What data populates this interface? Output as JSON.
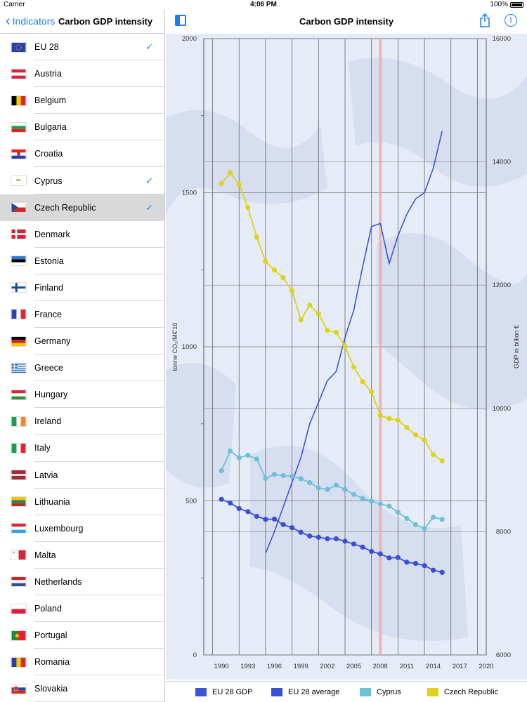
{
  "status": {
    "carrier": "Carrier",
    "time": "4:06 PM",
    "battery": "100%"
  },
  "sidebar": {
    "back_label": "Indicators",
    "title": "Carbon GDP intensity",
    "countries": [
      {
        "name": "EU 28",
        "checked": true,
        "selected": false,
        "flag": "eu"
      },
      {
        "name": "Austria",
        "checked": false,
        "selected": false,
        "flag": "at"
      },
      {
        "name": "Belgium",
        "checked": false,
        "selected": false,
        "flag": "be"
      },
      {
        "name": "Bulgaria",
        "checked": false,
        "selected": false,
        "flag": "bg"
      },
      {
        "name": "Croatia",
        "checked": false,
        "selected": false,
        "flag": "hr"
      },
      {
        "name": "Cyprus",
        "checked": true,
        "selected": false,
        "flag": "cy"
      },
      {
        "name": "Czech Republic",
        "checked": true,
        "selected": true,
        "flag": "cz"
      },
      {
        "name": "Denmark",
        "checked": false,
        "selected": false,
        "flag": "dk"
      },
      {
        "name": "Estonia",
        "checked": false,
        "selected": false,
        "flag": "ee"
      },
      {
        "name": "Finland",
        "checked": false,
        "selected": false,
        "flag": "fi"
      },
      {
        "name": "France",
        "checked": false,
        "selected": false,
        "flag": "fr"
      },
      {
        "name": "Germany",
        "checked": false,
        "selected": false,
        "flag": "de"
      },
      {
        "name": "Greece",
        "checked": false,
        "selected": false,
        "flag": "gr"
      },
      {
        "name": "Hungary",
        "checked": false,
        "selected": false,
        "flag": "hu"
      },
      {
        "name": "Ireland",
        "checked": false,
        "selected": false,
        "flag": "ie"
      },
      {
        "name": "Italy",
        "checked": false,
        "selected": false,
        "flag": "it"
      },
      {
        "name": "Latvia",
        "checked": false,
        "selected": false,
        "flag": "lv"
      },
      {
        "name": "Lithuania",
        "checked": false,
        "selected": false,
        "flag": "lt"
      },
      {
        "name": "Luxembourg",
        "checked": false,
        "selected": false,
        "flag": "lu"
      },
      {
        "name": "Malta",
        "checked": false,
        "selected": false,
        "flag": "mt"
      },
      {
        "name": "Netherlands",
        "checked": false,
        "selected": false,
        "flag": "nl"
      },
      {
        "name": "Poland",
        "checked": false,
        "selected": false,
        "flag": "pl"
      },
      {
        "name": "Portugal",
        "checked": false,
        "selected": false,
        "flag": "pt"
      },
      {
        "name": "Romania",
        "checked": false,
        "selected": false,
        "flag": "ro"
      },
      {
        "name": "Slovakia",
        "checked": false,
        "selected": false,
        "flag": "sk"
      }
    ],
    "check_glyph": "✓"
  },
  "main": {
    "title": "Carbon GDP intensity",
    "info_glyph": "i"
  },
  "chart_data": {
    "type": "line",
    "title": "Carbon GDP intensity",
    "ylabel_left": "tonne CO₂/M€'10",
    "ylabel_right": "GDP in billion €",
    "xlim": [
      1988,
      2020
    ],
    "ylim_left": [
      0,
      2000
    ],
    "ylim_right": [
      6000,
      16000
    ],
    "x_ticks": [
      1990,
      1993,
      1996,
      1999,
      2002,
      2005,
      2008,
      2011,
      2014,
      2017,
      2020
    ],
    "y_left_ticks": [
      0,
      500,
      1000,
      1500,
      2000
    ],
    "y_right_ticks": [
      6000,
      8000,
      10000,
      12000,
      14000,
      16000
    ],
    "highlight_year": 2008,
    "grid": true,
    "legend_position": "bottom",
    "series": [
      {
        "name": "EU 28 GDP",
        "axis": "right",
        "color": "#3a56d8",
        "markers": false,
        "x": [
          1995,
          1996,
          1997,
          1998,
          1999,
          2000,
          2001,
          2002,
          2003,
          2004,
          2005,
          2006,
          2007,
          2008,
          2009,
          2010,
          2011,
          2012,
          2013,
          2014,
          2015
        ],
        "y": [
          7650,
          8000,
          8400,
          8800,
          9200,
          9750,
          10100,
          10450,
          10600,
          11150,
          11600,
          12300,
          12950,
          13000,
          12350,
          12800,
          13150,
          13400,
          13500,
          13900,
          14500
        ]
      },
      {
        "name": "EU 28 average",
        "axis": "left",
        "color": "#3a4fd6",
        "markers": true,
        "x": [
          1990,
          1991,
          1992,
          1993,
          1994,
          1995,
          1996,
          1997,
          1998,
          1999,
          2000,
          2001,
          2002,
          2003,
          2004,
          2005,
          2006,
          2007,
          2008,
          2009,
          2010,
          2011,
          2012,
          2013,
          2014,
          2015
        ],
        "y": [
          505,
          493,
          475,
          465,
          450,
          440,
          441,
          423,
          413,
          398,
          386,
          382,
          377,
          377,
          369,
          360,
          350,
          336,
          328,
          315,
          316,
          301,
          297,
          290,
          275,
          268
        ]
      },
      {
        "name": "Cyprus",
        "axis": "left",
        "color": "#6cc0d8",
        "markers": true,
        "x": [
          1990,
          1991,
          1992,
          1993,
          1994,
          1995,
          1996,
          1997,
          1998,
          1999,
          2000,
          2001,
          2002,
          2003,
          2004,
          2005,
          2006,
          2007,
          2008,
          2009,
          2010,
          2011,
          2012,
          2013,
          2014,
          2015
        ],
        "y": [
          598,
          662,
          640,
          648,
          636,
          573,
          586,
          582,
          580,
          572,
          559,
          542,
          537,
          551,
          537,
          521,
          508,
          499,
          490,
          483,
          463,
          443,
          423,
          410,
          447,
          440
        ]
      },
      {
        "name": "Czech Republic",
        "axis": "left",
        "color": "#e0d21a",
        "markers": true,
        "x": [
          1990,
          1991,
          1992,
          1993,
          1994,
          1995,
          1996,
          1997,
          1998,
          1999,
          2000,
          2001,
          2002,
          2003,
          2004,
          2005,
          2006,
          2007,
          2008,
          2009,
          2010,
          2011,
          2012,
          2013,
          2014,
          2015
        ],
        "y": [
          1530,
          1565,
          1527,
          1452,
          1356,
          1277,
          1249,
          1224,
          1182,
          1087,
          1135,
          1107,
          1053,
          1047,
          1001,
          934,
          887,
          854,
          777,
          767,
          762,
          738,
          714,
          697,
          650,
          630
        ]
      }
    ]
  }
}
